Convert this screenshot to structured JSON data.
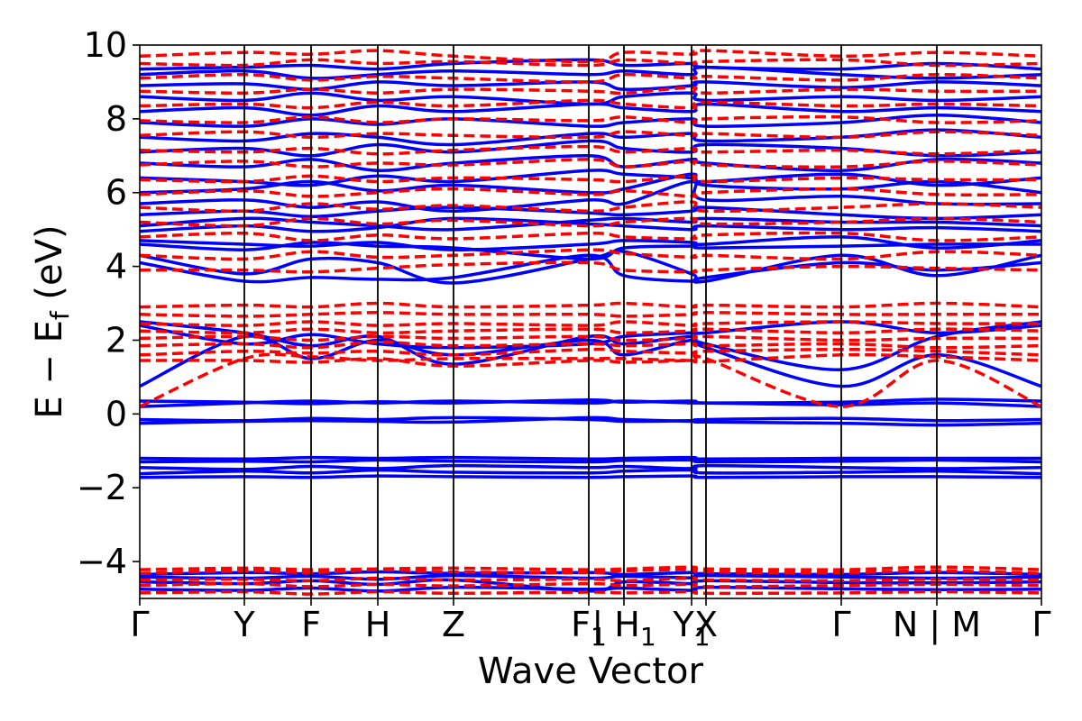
{
  "chart_data": {
    "type": "line",
    "xlabel": "Wave Vector",
    "ylabel": "E − E_f (eV)",
    "ylabel_main": "E − E",
    "ylabel_sub": "f",
    "ylabel_unit": " (eV)",
    "xlim": [
      0,
      1
    ],
    "ylim": [
      -5,
      10
    ],
    "yticks": [
      {
        "value": -4,
        "label": "−4"
      },
      {
        "value": -2,
        "label": "−2"
      },
      {
        "value": 0,
        "label": "0"
      },
      {
        "value": 2,
        "label": "2"
      },
      {
        "value": 4,
        "label": "4"
      },
      {
        "value": 6,
        "label": "6"
      },
      {
        "value": 8,
        "label": "8"
      },
      {
        "value": 10,
        "label": "10"
      }
    ],
    "kpoints": [
      {
        "pos": 0.0,
        "label": "Γ",
        "sub": ""
      },
      {
        "pos": 0.116,
        "label": "Y",
        "sub": ""
      },
      {
        "pos": 0.19,
        "label": "F",
        "sub": ""
      },
      {
        "pos": 0.264,
        "label": "H",
        "sub": ""
      },
      {
        "pos": 0.348,
        "label": "Z",
        "sub": ""
      },
      {
        "pos": 0.498,
        "label": "F",
        "sub": "1"
      },
      {
        "pos": 0.537,
        "label": "| H",
        "sub": "1"
      },
      {
        "pos": 0.612,
        "label": "Y",
        "sub": "1"
      },
      {
        "pos": 0.628,
        "label": "X",
        "sub": ""
      },
      {
        "pos": 0.778,
        "label": "Γ",
        "sub": ""
      },
      {
        "pos": 0.884,
        "label": "N | M",
        "sub": ""
      },
      {
        "pos": 1.0,
        "label": "Γ",
        "sub": ""
      }
    ],
    "series": [
      {
        "style": "solid",
        "color": "#0000ff",
        "bands": [
          [
            -4.75,
            -4.78,
            -4.72,
            -4.8,
            -4.7,
            -4.75,
            -4.72,
            -4.78,
            -4.7,
            -4.74,
            -4.76,
            -4.75
          ],
          [
            -4.55,
            -4.6,
            -4.52,
            -4.62,
            -4.5,
            -4.8,
            -4.55,
            -4.6,
            -4.52,
            -4.57,
            -4.58,
            -4.55
          ],
          [
            -4.42,
            -4.45,
            -4.4,
            -4.48,
            -4.38,
            -4.45,
            -4.4,
            -4.44,
            -4.38,
            -4.42,
            -4.45,
            -4.42
          ],
          [
            -4.35,
            -4.3,
            -4.33,
            -4.28,
            -4.32,
            -4.3,
            -4.35,
            -4.3,
            -4.33,
            -4.35,
            -4.3,
            -4.35
          ],
          [
            -1.72,
            -1.7,
            -1.72,
            -1.68,
            -1.7,
            -1.72,
            -1.7,
            -1.68,
            -1.72,
            -1.7,
            -1.7,
            -1.72
          ],
          [
            -1.62,
            -1.55,
            -1.6,
            -1.52,
            -1.58,
            -1.6,
            -1.55,
            -1.52,
            -1.6,
            -1.58,
            -1.55,
            -1.62
          ],
          [
            -1.45,
            -1.5,
            -1.42,
            -1.48,
            -1.4,
            -1.45,
            -1.42,
            -1.48,
            -1.4,
            -1.45,
            -1.48,
            -1.45
          ],
          [
            -1.3,
            -1.28,
            -1.3,
            -1.25,
            -1.28,
            -1.3,
            -1.26,
            -1.25,
            -1.3,
            -1.28,
            -1.25,
            -1.3
          ],
          [
            -1.2,
            -1.22,
            -1.18,
            -1.2,
            -1.18,
            -1.22,
            -1.2,
            -1.18,
            -1.22,
            -1.2,
            -1.2,
            -1.2
          ],
          [
            -0.25,
            -0.2,
            -0.18,
            -0.2,
            -0.22,
            -0.1,
            -0.15,
            -0.2,
            -0.22,
            -0.25,
            -0.3,
            -0.25
          ],
          [
            -0.15,
            -0.18,
            -0.12,
            -0.15,
            -0.1,
            -0.15,
            -0.2,
            -0.18,
            -0.15,
            -0.12,
            -0.18,
            -0.15
          ],
          [
            0.2,
            0.3,
            0.35,
            0.3,
            0.35,
            0.3,
            0.35,
            0.3,
            0.3,
            0.25,
            0.3,
            0.2
          ],
          [
            0.35,
            0.32,
            0.28,
            0.33,
            0.3,
            0.38,
            0.32,
            0.35,
            0.3,
            0.32,
            0.4,
            0.35
          ],
          [
            0.75,
            2.1,
            1.5,
            2.0,
            1.6,
            2.0,
            1.6,
            2.0,
            1.8,
            0.75,
            1.6,
            0.75
          ],
          [
            2.5,
            2.2,
            1.85,
            2.1,
            1.35,
            2.1,
            1.9,
            2.1,
            1.9,
            1.2,
            2.1,
            2.5
          ],
          [
            2.4,
            1.9,
            2.15,
            1.9,
            1.8,
            1.9,
            2.1,
            2.2,
            2.2,
            2.5,
            2.2,
            2.4
          ],
          [
            4.1,
            3.6,
            3.7,
            3.65,
            3.7,
            4.3,
            3.75,
            3.6,
            3.7,
            4.1,
            3.9,
            4.1
          ],
          [
            4.3,
            3.8,
            4.2,
            4.1,
            3.55,
            4.2,
            4.4,
            3.8,
            3.6,
            4.3,
            3.75,
            4.3
          ],
          [
            4.6,
            4.45,
            4.65,
            4.55,
            4.5,
            4.2,
            4.5,
            4.55,
            4.5,
            4.55,
            4.6,
            4.6
          ],
          [
            4.7,
            4.6,
            4.55,
            4.65,
            4.45,
            4.6,
            4.7,
            4.65,
            4.6,
            4.8,
            4.5,
            4.7
          ],
          [
            4.95,
            5.1,
            4.95,
            5.05,
            5.3,
            5.15,
            5.1,
            5.0,
            5.1,
            5.0,
            5.05,
            4.95
          ],
          [
            5.1,
            5.3,
            5.2,
            5.1,
            5.0,
            5.25,
            5.3,
            5.2,
            5.3,
            5.2,
            5.2,
            5.1
          ],
          [
            5.4,
            5.5,
            5.35,
            5.5,
            5.6,
            5.45,
            5.4,
            5.5,
            5.6,
            5.4,
            5.3,
            5.4
          ],
          [
            5.7,
            5.8,
            5.6,
            5.75,
            5.5,
            5.8,
            5.7,
            6.3,
            5.8,
            5.9,
            5.7,
            5.7
          ],
          [
            6.0,
            6.1,
            6.3,
            6.05,
            6.2,
            6.0,
            6.1,
            6.5,
            6.2,
            6.1,
            6.3,
            6.0
          ],
          [
            6.4,
            6.3,
            6.2,
            6.45,
            6.3,
            6.6,
            6.5,
            6.4,
            6.3,
            6.5,
            6.2,
            6.4
          ],
          [
            6.8,
            6.7,
            6.9,
            6.6,
            6.8,
            7.0,
            6.7,
            6.9,
            6.8,
            6.6,
            6.9,
            6.8
          ],
          [
            7.1,
            7.2,
            7.0,
            7.3,
            7.1,
            7.4,
            7.2,
            7.1,
            7.3,
            7.2,
            7.0,
            7.1
          ],
          [
            7.5,
            7.4,
            7.6,
            7.5,
            7.3,
            7.6,
            7.5,
            7.6,
            7.4,
            7.5,
            7.7,
            7.5
          ],
          [
            7.9,
            7.8,
            8.0,
            7.85,
            8.0,
            7.8,
            7.9,
            8.0,
            7.8,
            7.9,
            8.1,
            7.9
          ],
          [
            8.2,
            8.3,
            8.1,
            8.35,
            8.2,
            8.4,
            8.3,
            8.2,
            8.4,
            8.2,
            8.3,
            8.2
          ],
          [
            8.6,
            8.5,
            8.7,
            8.5,
            8.6,
            8.4,
            8.6,
            8.7,
            8.5,
            8.6,
            8.5,
            8.6
          ],
          [
            8.9,
            8.95,
            8.8,
            9.0,
            8.9,
            9.0,
            8.8,
            8.9,
            9.0,
            8.85,
            9.0,
            8.9
          ],
          [
            9.2,
            9.3,
            9.1,
            9.2,
            9.3,
            9.2,
            9.3,
            9.2,
            9.4,
            9.2,
            9.1,
            9.2
          ],
          [
            9.35,
            9.4,
            9.45,
            9.35,
            9.5,
            9.6,
            9.45,
            9.5,
            9.4,
            9.35,
            9.5,
            9.35
          ]
        ]
      },
      {
        "style": "dashed",
        "color": "#ff0000",
        "bands": [
          [
            -4.85,
            -4.82,
            -4.88,
            -4.82,
            -4.86,
            -4.83,
            -4.85,
            -4.82,
            -4.86,
            -4.85,
            -4.82,
            -4.85
          ],
          [
            -4.65,
            -4.6,
            -4.68,
            -4.62,
            -4.66,
            -4.6,
            -4.65,
            -4.62,
            -4.68,
            -4.65,
            -4.62,
            -4.65
          ],
          [
            -4.5,
            -4.48,
            -4.52,
            -4.45,
            -4.5,
            -4.48,
            -4.52,
            -4.45,
            -4.5,
            -4.52,
            -4.48,
            -4.5
          ],
          [
            -4.32,
            -4.25,
            -4.3,
            -4.22,
            -4.28,
            -4.3,
            -4.25,
            -4.22,
            -4.28,
            -4.3,
            -4.25,
            -4.32
          ],
          [
            -4.22,
            -4.18,
            -4.22,
            -4.2,
            -4.18,
            -4.22,
            -4.2,
            -4.15,
            -4.2,
            -4.22,
            -4.15,
            -4.22
          ],
          [
            0.2,
            1.5,
            1.55,
            1.45,
            1.5,
            1.5,
            1.5,
            1.45,
            1.5,
            0.2,
            1.45,
            0.2
          ],
          [
            1.45,
            1.45,
            1.4,
            1.5,
            1.3,
            1.45,
            1.4,
            1.45,
            1.42,
            1.6,
            1.55,
            1.45
          ],
          [
            1.6,
            1.7,
            1.65,
            1.7,
            1.6,
            1.75,
            1.7,
            1.65,
            1.7,
            1.75,
            1.7,
            1.6
          ],
          [
            1.85,
            1.9,
            1.8,
            1.95,
            1.85,
            1.9,
            1.85,
            1.9,
            1.85,
            1.9,
            1.8,
            1.85
          ],
          [
            2.05,
            2.1,
            2.0,
            2.1,
            2.05,
            2.1,
            2.0,
            2.05,
            2.1,
            2.0,
            2.05,
            2.05
          ],
          [
            2.25,
            2.2,
            2.3,
            2.2,
            2.25,
            2.3,
            2.2,
            2.25,
            2.3,
            2.2,
            2.3,
            2.25
          ],
          [
            2.45,
            2.4,
            2.5,
            2.4,
            2.45,
            2.4,
            2.5,
            2.4,
            2.45,
            2.5,
            2.45,
            2.45
          ],
          [
            2.7,
            2.65,
            2.7,
            2.75,
            2.7,
            2.7,
            2.65,
            2.7,
            2.75,
            2.7,
            2.7,
            2.7
          ],
          [
            2.9,
            2.95,
            2.9,
            3.0,
            2.9,
            2.95,
            3.0,
            2.9,
            2.95,
            2.9,
            3.0,
            2.9
          ],
          [
            3.9,
            3.9,
            3.85,
            3.95,
            4.05,
            4.1,
            3.9,
            3.85,
            3.9,
            4.0,
            3.95,
            3.9
          ],
          [
            4.3,
            4.2,
            4.4,
            4.25,
            4.3,
            4.45,
            4.35,
            4.25,
            4.3,
            4.2,
            4.4,
            4.3
          ],
          [
            4.8,
            4.9,
            4.7,
            4.85,
            4.75,
            4.9,
            4.8,
            4.75,
            4.85,
            4.9,
            4.7,
            4.8
          ],
          [
            5.2,
            5.1,
            5.3,
            5.15,
            5.25,
            5.1,
            5.2,
            5.3,
            5.15,
            5.2,
            5.3,
            5.2
          ],
          [
            5.6,
            5.5,
            5.7,
            5.55,
            5.65,
            5.5,
            5.6,
            5.75,
            5.5,
            5.6,
            5.7,
            5.6
          ],
          [
            5.95,
            6.05,
            5.9,
            6.0,
            6.1,
            5.95,
            6.05,
            5.9,
            6.0,
            6.1,
            5.95,
            5.95
          ],
          [
            6.35,
            6.3,
            6.45,
            6.3,
            6.4,
            6.35,
            6.3,
            6.45,
            6.3,
            6.4,
            6.35,
            6.35
          ],
          [
            6.75,
            6.85,
            6.7,
            6.8,
            6.75,
            6.9,
            6.7,
            6.85,
            6.75,
            6.7,
            6.85,
            6.75
          ],
          [
            7.15,
            7.1,
            7.2,
            7.05,
            7.15,
            7.25,
            7.1,
            7.2,
            7.1,
            7.15,
            7.05,
            7.15
          ],
          [
            7.55,
            7.65,
            7.5,
            7.6,
            7.55,
            7.5,
            7.65,
            7.55,
            7.6,
            7.5,
            7.65,
            7.55
          ],
          [
            7.95,
            7.9,
            8.05,
            7.9,
            8.0,
            7.95,
            8.05,
            7.9,
            8.0,
            8.05,
            7.9,
            7.95
          ],
          [
            8.35,
            8.4,
            8.3,
            8.45,
            8.35,
            8.5,
            8.4,
            8.3,
            8.45,
            8.35,
            8.4,
            8.35
          ],
          [
            8.75,
            8.7,
            8.8,
            8.7,
            8.8,
            8.75,
            8.7,
            8.85,
            8.7,
            8.8,
            8.75,
            8.75
          ],
          [
            9.1,
            9.2,
            9.05,
            9.15,
            9.1,
            9.0,
            9.2,
            9.1,
            9.15,
            9.05,
            9.2,
            9.1
          ],
          [
            9.5,
            9.45,
            9.6,
            9.5,
            9.55,
            9.45,
            9.6,
            9.5,
            9.55,
            9.6,
            9.45,
            9.5
          ],
          [
            9.7,
            9.8,
            9.75,
            9.85,
            9.7,
            9.55,
            9.8,
            9.75,
            9.85,
            9.7,
            9.8,
            9.7
          ]
        ]
      }
    ]
  }
}
